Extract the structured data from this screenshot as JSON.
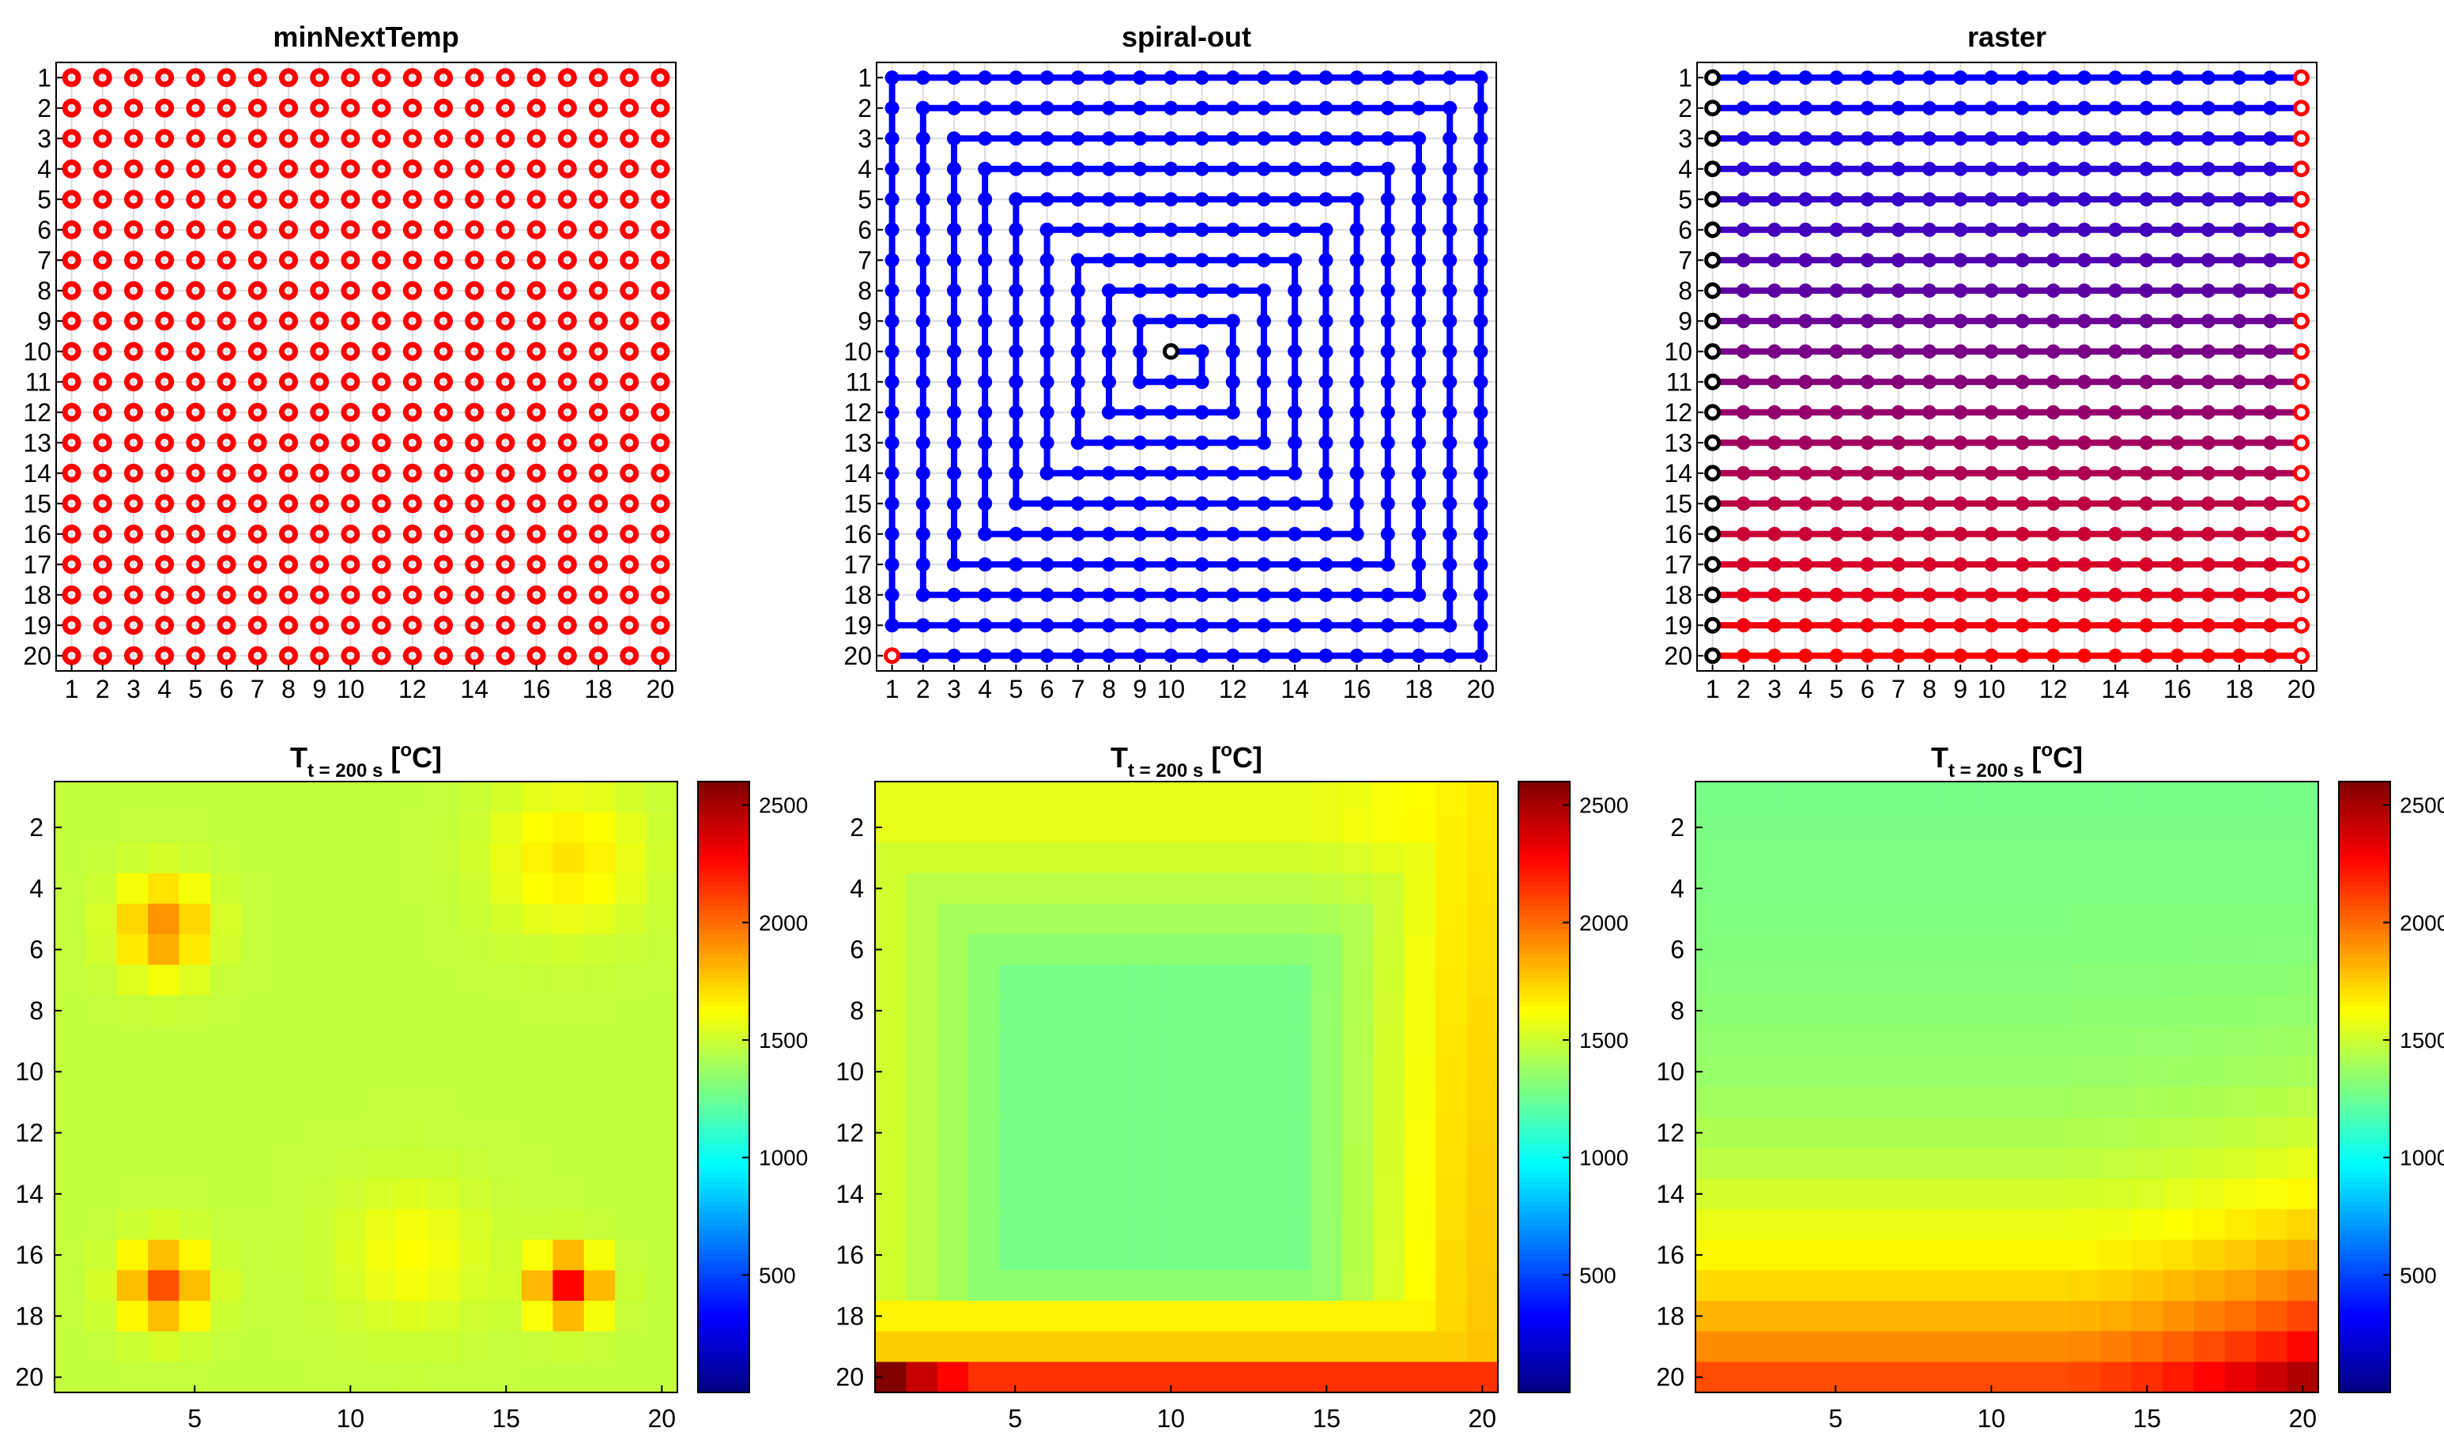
{
  "chart_data": [
    {
      "type": "scatter",
      "title": "minNextTemp",
      "grid_size": 20,
      "xticks": [
        1,
        2,
        3,
        4,
        5,
        6,
        7,
        8,
        9,
        10,
        12,
        14,
        16,
        18,
        20
      ],
      "yticks": [
        1,
        2,
        3,
        4,
        5,
        6,
        7,
        8,
        9,
        10,
        11,
        12,
        13,
        14,
        15,
        16,
        17,
        18,
        19,
        20
      ],
      "marker_color": "#ff0000",
      "points": "all 400 grid cells (x=1..20, y=1..20) marked with red open-circle markers; no path"
    },
    {
      "type": "line",
      "title": "spiral-out",
      "grid_size": 20,
      "xticks": [
        1,
        2,
        3,
        4,
        5,
        6,
        7,
        8,
        9,
        10,
        12,
        14,
        16,
        18,
        20
      ],
      "yticks": [
        1,
        2,
        3,
        4,
        5,
        6,
        7,
        8,
        9,
        10,
        11,
        12,
        13,
        14,
        15,
        16,
        17,
        18,
        19,
        20
      ],
      "path_color": "#0000ff",
      "start": [
        10,
        10
      ],
      "start_color": "#000000",
      "end": [
        1,
        20
      ],
      "end_color": "#ff0000",
      "path": "outward square spiral from (10,10) to (1,20) visiting every cell"
    },
    {
      "type": "line",
      "title": "raster",
      "grid_size": 20,
      "xticks": [
        1,
        2,
        3,
        4,
        5,
        6,
        7,
        8,
        9,
        10,
        12,
        14,
        16,
        18,
        20
      ],
      "yticks": [
        1,
        2,
        3,
        4,
        5,
        6,
        7,
        8,
        9,
        10,
        11,
        12,
        13,
        14,
        15,
        16,
        17,
        18,
        19,
        20
      ],
      "row_color_start": "#0000ff",
      "row_color_end": "#ff0000",
      "start_marker_color": "#000000",
      "end_marker_color": "#ff0000",
      "path": "each row y=1..20 traversed left to right from x=1 to x=20; row color goes blue (row 1) to red (row 20)"
    },
    {
      "type": "heatmap",
      "title_main": "T",
      "title_sub": "t = 200 s",
      "title_units_pre": "[",
      "title_units_sup": "o",
      "title_units_post": "C]",
      "grid_size": 20,
      "xticks": [
        5,
        10,
        15,
        20
      ],
      "yticks": [
        2,
        4,
        6,
        8,
        10,
        12,
        14,
        16,
        18,
        20
      ],
      "colorbar": {
        "colormap": "jet",
        "clim": [
          0,
          2600
        ],
        "ticks": [
          500,
          1000,
          1500,
          2000,
          2500
        ]
      },
      "model": {
        "type": "spots",
        "base": 1470,
        "spots": [
          [
            4,
            5,
            350,
            1.0
          ],
          [
            4,
            6,
            150,
            0.9
          ],
          [
            17,
            3,
            220,
            1.6
          ],
          [
            4,
            17,
            600,
            0.9
          ],
          [
            17,
            17,
            800,
            0.75
          ],
          [
            12,
            16,
            150,
            1.6
          ]
        ]
      }
    },
    {
      "type": "heatmap",
      "title_main": "T",
      "title_sub": "t = 200 s",
      "title_units_pre": "[",
      "title_units_sup": "o",
      "title_units_post": "C]",
      "grid_size": 20,
      "xticks": [
        5,
        10,
        15,
        20
      ],
      "yticks": [
        2,
        4,
        6,
        8,
        10,
        12,
        14,
        16,
        18,
        20
      ],
      "colorbar": {
        "colormap": "jet",
        "clim": [
          0,
          2600
        ],
        "ticks": [
          500,
          1000,
          1500,
          2000,
          2500
        ]
      },
      "model": {
        "type": "spiral",
        "center": [
          9.5,
          11.5
        ],
        "center_value": 1280,
        "rim_value": 1560,
        "right_edge_gain": 220,
        "bottom_rows": [
          [
            20,
            2150
          ],
          [
            19,
            1750
          ],
          [
            18,
            1650
          ]
        ],
        "corner_hot": 2600
      }
    },
    {
      "type": "heatmap",
      "title_main": "T",
      "title_sub": "t = 200 s",
      "title_units_pre": "[",
      "title_units_sup": "o",
      "title_units_post": "C]",
      "grid_size": 20,
      "xticks": [
        5,
        10,
        15,
        20
      ],
      "yticks": [
        2,
        4,
        6,
        8,
        10,
        12,
        14,
        16,
        18,
        20
      ],
      "colorbar": {
        "colormap": "jet",
        "clim": [
          0,
          2600
        ],
        "ticks": [
          500,
          1000,
          1500,
          2000,
          2500
        ]
      },
      "row_values": [
        1280,
        1285,
        1290,
        1295,
        1305,
        1310,
        1320,
        1330,
        1345,
        1360,
        1390,
        1420,
        1460,
        1510,
        1570,
        1640,
        1720,
        1810,
        1920,
        2080
      ],
      "right_end_gain": 400
    }
  ]
}
